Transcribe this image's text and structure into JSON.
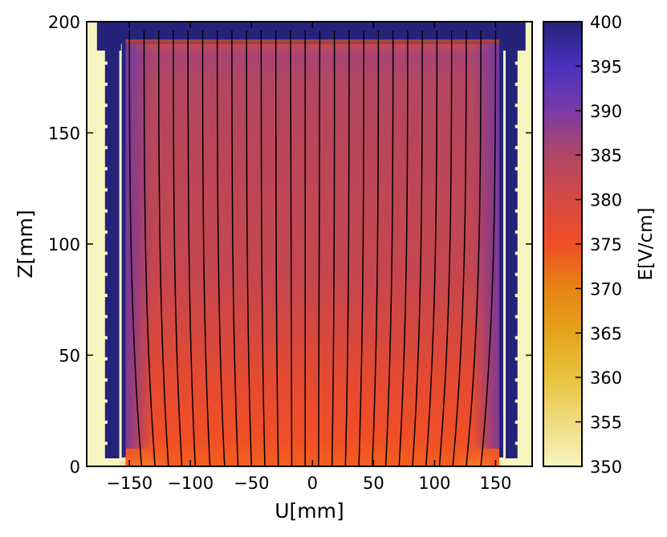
{
  "chart_data": {
    "type": "heatmap",
    "title": "",
    "xlabel": "U[mm]",
    "ylabel": "Z[mm]",
    "xlim": [
      -185,
      180
    ],
    "ylim": [
      0,
      200
    ],
    "xticks": [
      -150,
      -100,
      -50,
      0,
      50,
      100,
      150
    ],
    "yticks": [
      0,
      50,
      100,
      150,
      200
    ],
    "xtick_labels": [
      "−150",
      "−100",
      "−50",
      "0",
      "50",
      "100",
      "150"
    ],
    "ytick_labels": [
      "0",
      "50",
      "100",
      "150",
      "200"
    ],
    "colorbar": {
      "label": "E[V/cm]",
      "range": [
        350,
        400
      ],
      "ticks": [
        350,
        355,
        360,
        365,
        370,
        375,
        380,
        385,
        390,
        395,
        400
      ],
      "tick_labels": [
        "350",
        "355",
        "360",
        "365",
        "370",
        "375",
        "380",
        "385",
        "390",
        "395",
        "400"
      ],
      "colormap_stops": [
        {
          "value": 350,
          "color": "#f8f4c0"
        },
        {
          "value": 355,
          "color": "#efdc80"
        },
        {
          "value": 360,
          "color": "#e8c23c"
        },
        {
          "value": 365,
          "color": "#e4a41c"
        },
        {
          "value": 370,
          "color": "#e68414"
        },
        {
          "value": 375,
          "color": "#f04e26"
        },
        {
          "value": 380,
          "color": "#d44a42"
        },
        {
          "value": 385,
          "color": "#b04667"
        },
        {
          "value": 390,
          "color": "#7a3aa6"
        },
        {
          "value": 395,
          "color": "#4a31bf"
        },
        {
          "value": 400,
          "color": "#25227a"
        }
      ]
    },
    "field_lines_u_at_top": [
      -150,
      -138,
      -126,
      -114,
      -102,
      -90,
      -78,
      -66,
      -54,
      -42,
      -30,
      -18,
      -6,
      6,
      18,
      30,
      42,
      54,
      66,
      78,
      90,
      102,
      114,
      126,
      138,
      150
    ],
    "field_lines_u_at_bottom": [
      -140,
      -129,
      -118,
      -107,
      -96,
      -84,
      -72,
      -61,
      -50,
      -39,
      -28,
      -17,
      -6,
      5,
      16,
      27,
      38,
      49,
      60,
      71,
      82,
      93,
      104,
      115,
      126,
      138
    ],
    "field_range_u": [
      -155,
      155
    ],
    "electrode_frame_u": [
      -170,
      168
    ]
  }
}
